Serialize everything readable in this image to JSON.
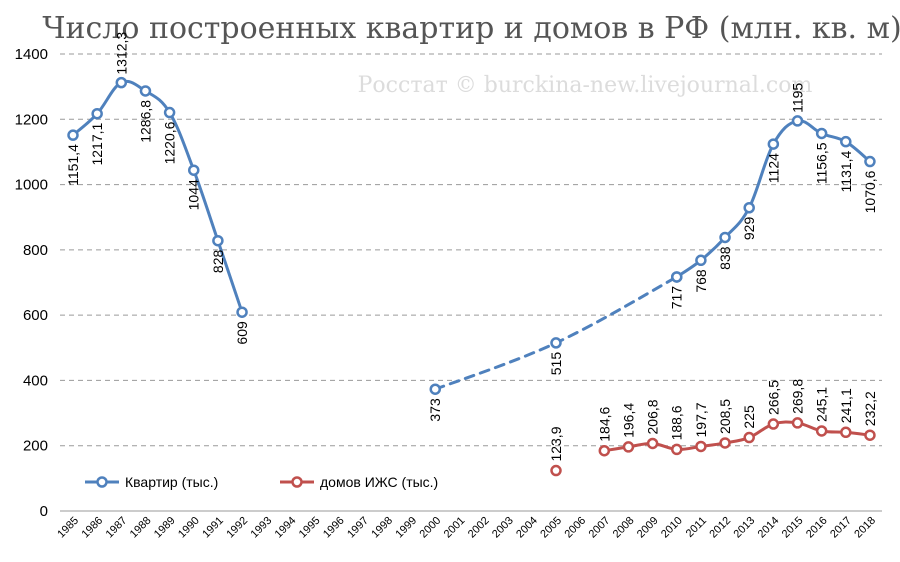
{
  "chart_data": {
    "type": "line",
    "title": "Число построенных квартир и домов в РФ (млн. кв. м)",
    "watermark": "Росстат © burckina-new.livejournal.com",
    "categories": [
      "1985",
      "1986",
      "1987",
      "1988",
      "1989",
      "1990",
      "1991",
      "1992",
      "1993",
      "1994",
      "1995",
      "1996",
      "1997",
      "1998",
      "1999",
      "2000",
      "2001",
      "2002",
      "2003",
      "2004",
      "2005",
      "2006",
      "2007",
      "2008",
      "2009",
      "2010",
      "2011",
      "2012",
      "2013",
      "2014",
      "2015",
      "2016",
      "2017",
      "2018"
    ],
    "yticks": [
      "0",
      "200",
      "400",
      "600",
      "800",
      "1000",
      "1200",
      "1400"
    ],
    "ylim": [
      0,
      1400
    ],
    "grid": true,
    "legend_position": "bottom-left",
    "series": [
      {
        "name": "Квартир (тыс.)",
        "color": "#4f81bd",
        "segments": [
          {
            "style": "solid",
            "points": [
              [
                1985,
                1151.4
              ],
              [
                1986,
                1217.1
              ],
              [
                1987,
                1312.3
              ],
              [
                1988,
                1286.8
              ],
              [
                1989,
                1220.6
              ],
              [
                1990,
                1044
              ],
              [
                1991,
                828
              ],
              [
                1992,
                609
              ]
            ]
          },
          {
            "style": "dashed",
            "points": [
              [
                2000,
                373
              ],
              [
                2005,
                515
              ],
              [
                2010,
                717
              ]
            ]
          },
          {
            "style": "solid",
            "points": [
              [
                2010,
                717
              ],
              [
                2011,
                768
              ],
              [
                2012,
                838
              ],
              [
                2013,
                929
              ],
              [
                2014,
                1124
              ],
              [
                2015,
                1195
              ],
              [
                2016,
                1156.5
              ],
              [
                2017,
                1131.4
              ],
              [
                2018,
                1070.6
              ]
            ]
          }
        ],
        "labels": [
          {
            "year": 1985,
            "text": "1151,4"
          },
          {
            "year": 1986,
            "text": "1217,1"
          },
          {
            "year": 1987,
            "text": "1312,3"
          },
          {
            "year": 1988,
            "text": "1286,8"
          },
          {
            "year": 1989,
            "text": "1220,6"
          },
          {
            "year": 1990,
            "text": "1044"
          },
          {
            "year": 1991,
            "text": "828"
          },
          {
            "year": 1992,
            "text": "609"
          },
          {
            "year": 2000,
            "text": "373"
          },
          {
            "year": 2005,
            "text": "515"
          },
          {
            "year": 2010,
            "text": "717"
          },
          {
            "year": 2011,
            "text": "768"
          },
          {
            "year": 2012,
            "text": "838"
          },
          {
            "year": 2013,
            "text": "929"
          },
          {
            "year": 2014,
            "text": "1124"
          },
          {
            "year": 2015,
            "text": "1195"
          },
          {
            "year": 2016,
            "text": "1156,5"
          },
          {
            "year": 2017,
            "text": "1131,4"
          },
          {
            "year": 2018,
            "text": "1070,6"
          }
        ]
      },
      {
        "name": "домов ИЖС (тыс.)",
        "color": "#c0504d",
        "segments": [
          {
            "style": "point",
            "points": [
              [
                2005,
                123.9
              ]
            ]
          },
          {
            "style": "solid",
            "points": [
              [
                2007,
                184.6
              ],
              [
                2008,
                196.4
              ],
              [
                2009,
                206.8
              ],
              [
                2010,
                188.6
              ],
              [
                2011,
                197.7
              ],
              [
                2012,
                208.5
              ],
              [
                2013,
                225
              ],
              [
                2014,
                266.5
              ],
              [
                2015,
                269.8
              ],
              [
                2016,
                245.1
              ],
              [
                2017,
                241.1
              ],
              [
                2018,
                232.2
              ]
            ]
          }
        ],
        "labels": [
          {
            "year": 2005,
            "text": "123,9"
          },
          {
            "year": 2007,
            "text": "184,6"
          },
          {
            "year": 2008,
            "text": "196,4"
          },
          {
            "year": 2009,
            "text": "206,8"
          },
          {
            "year": 2010,
            "text": "188,6"
          },
          {
            "year": 2011,
            "text": "197,7"
          },
          {
            "year": 2012,
            "text": "208,5"
          },
          {
            "year": 2013,
            "text": "225"
          },
          {
            "year": 2014,
            "text": "266,5"
          },
          {
            "year": 2015,
            "text": "269,8"
          },
          {
            "year": 2016,
            "text": "245,1"
          },
          {
            "year": 2017,
            "text": "241,1"
          },
          {
            "year": 2018,
            "text": "232,2"
          }
        ]
      }
    ]
  }
}
